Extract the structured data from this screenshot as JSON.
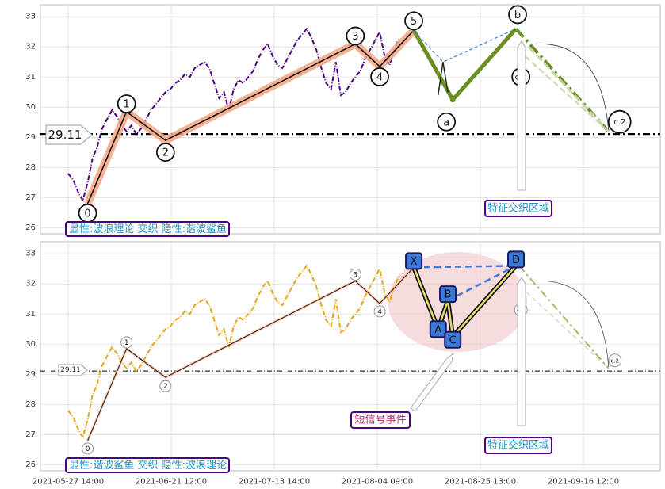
{
  "chart_data": {
    "type": "line",
    "x_tick_labels": [
      "2021-05-27 14:00",
      "2021-06-21 12:00",
      "2021-07-13 14:00",
      "2021-08-04 09:00",
      "2021-08-25 13:00",
      "2021-09-16 12:00"
    ],
    "panels": [
      {
        "name": "top",
        "ylim": [
          25.8,
          33.4
        ],
        "yticks": [
          26,
          27,
          28,
          29,
          30,
          31,
          32,
          33
        ],
        "ref_line": {
          "value": 29.11,
          "label": "29.11"
        },
        "price_color": "#4b0082",
        "price_series": [
          [
            0,
            27.8
          ],
          [
            1,
            27.6
          ],
          [
            2,
            27.2
          ],
          [
            3,
            26.9
          ],
          [
            4,
            27.5
          ],
          [
            5,
            28.3
          ],
          [
            6,
            28.7
          ],
          [
            7,
            29.3
          ],
          [
            8,
            29.6
          ],
          [
            9,
            29.9
          ],
          [
            10,
            29.7
          ],
          [
            11,
            29.4
          ],
          [
            12,
            29.2
          ],
          [
            13,
            29.4
          ],
          [
            14,
            29.1
          ],
          [
            15,
            29.3
          ],
          [
            16,
            29.6
          ],
          [
            17,
            29.9
          ],
          [
            18,
            30.1
          ],
          [
            19,
            30.3
          ],
          [
            20,
            30.5
          ],
          [
            21,
            30.6
          ],
          [
            22,
            30.8
          ],
          [
            23,
            30.9
          ],
          [
            24,
            31.1
          ],
          [
            25,
            31.0
          ],
          [
            26,
            31.3
          ],
          [
            27,
            31.4
          ],
          [
            28,
            31.5
          ],
          [
            29,
            31.3
          ],
          [
            30,
            30.8
          ],
          [
            31,
            30.3
          ],
          [
            32,
            30.5
          ],
          [
            33,
            29.9
          ],
          [
            34,
            30.6
          ],
          [
            35,
            30.9
          ],
          [
            36,
            30.8
          ],
          [
            37,
            31.0
          ],
          [
            38,
            31.2
          ],
          [
            39,
            31.6
          ],
          [
            40,
            31.9
          ],
          [
            41,
            32.1
          ],
          [
            42,
            31.7
          ],
          [
            43,
            31.4
          ],
          [
            44,
            31.3
          ],
          [
            45,
            31.6
          ],
          [
            46,
            31.9
          ],
          [
            47,
            32.2
          ],
          [
            48,
            32.4
          ],
          [
            49,
            32.6
          ],
          [
            50,
            32.3
          ],
          [
            51,
            31.9
          ],
          [
            52,
            31.3
          ],
          [
            53,
            30.8
          ],
          [
            54,
            30.6
          ],
          [
            55,
            31.5
          ],
          [
            56,
            30.4
          ],
          [
            57,
            30.5
          ],
          [
            58,
            30.8
          ],
          [
            59,
            31.0
          ],
          [
            60,
            31.2
          ],
          [
            61,
            31.6
          ],
          [
            62,
            31.9
          ],
          [
            63,
            32.2
          ],
          [
            64,
            32.5
          ],
          [
            65,
            31.7
          ],
          [
            66,
            31.4
          ],
          [
            67,
            31.9
          ],
          [
            68,
            32.3
          ]
        ],
        "wave_points": [
          {
            "label": "0",
            "x": 4,
            "y": 26.8
          },
          {
            "label": "1",
            "x": 12,
            "y": 29.85
          },
          {
            "label": "2",
            "x": 20,
            "y": 28.9
          },
          {
            "label": "3",
            "x": 59,
            "y": 32.1
          },
          {
            "label": "4",
            "x": 64,
            "y": 31.35
          },
          {
            "label": "5",
            "x": 71,
            "y": 32.55
          },
          {
            "label": "a",
            "x": 79,
            "y": 30.25
          },
          {
            "label": "b",
            "x": 92,
            "y": 32.6
          },
          {
            "label": "c.1",
            "x": 93,
            "y": 31.4
          },
          {
            "label": "c.2",
            "x": 111,
            "y": 29.2
          }
        ],
        "annotations": [
          {
            "text": "特征交织区域"
          }
        ],
        "legend": {
          "text_a": "显性:波浪理论",
          "text_b": " 交织 ",
          "text_c": "隐性:谐波鲨鱼"
        }
      },
      {
        "name": "bottom",
        "ylim": [
          25.8,
          33.4
        ],
        "yticks": [
          26,
          27,
          28,
          29,
          30,
          31,
          32,
          33
        ],
        "ref_line": {
          "value": 29.11,
          "label": "29.11"
        },
        "price_color": "#e8a317",
        "wave_points": [
          {
            "label": "0",
            "x": 4,
            "y": 26.8
          },
          {
            "label": "1",
            "x": 12,
            "y": 29.85
          },
          {
            "label": "2",
            "x": 20,
            "y": 28.9
          },
          {
            "label": "3",
            "x": 59,
            "y": 32.1
          },
          {
            "label": "4",
            "x": 64,
            "y": 31.35
          },
          {
            "label": "c.1",
            "x": 93,
            "y": 31.4
          },
          {
            "label": "c.2",
            "x": 111,
            "y": 29.2
          }
        ],
        "harmonic_points": [
          {
            "label": "X",
            "x": 71,
            "y": 32.55
          },
          {
            "label": "A",
            "x": 76,
            "y": 30.5
          },
          {
            "label": "B",
            "x": 78,
            "y": 31.45
          },
          {
            "label": "C",
            "x": 79,
            "y": 30.25
          },
          {
            "label": "D",
            "x": 92,
            "y": 32.6
          }
        ],
        "annotations": [
          {
            "text": "短信号事件"
          },
          {
            "text": "特征交织区域"
          }
        ],
        "legend": {
          "text_a": "显性:谐波鲨鱼",
          "text_b": " 交织 ",
          "text_c": "隐性:波浪理论"
        }
      }
    ],
    "colors": {
      "trend_highlight": "#f4a582",
      "impulse": "#6b8e23",
      "legend_border": "#4b0082",
      "legend_text": "#1e90c8",
      "harmonic_box": "#3c78d8",
      "ellipse": "#f2c4c8",
      "annot_red": "#b03060"
    }
  }
}
